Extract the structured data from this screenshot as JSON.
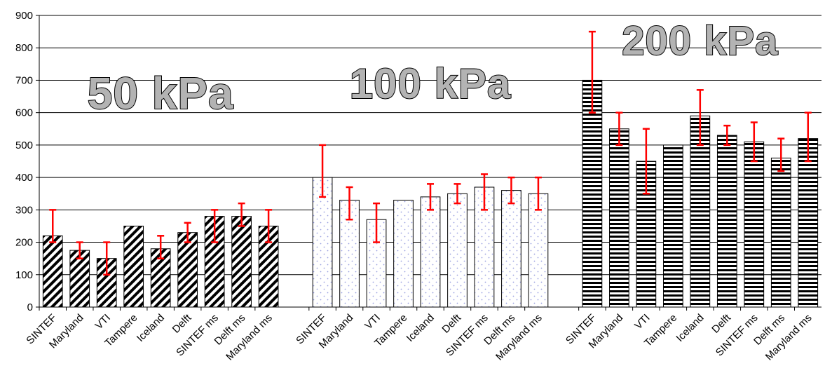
{
  "chart_data": {
    "type": "bar",
    "title": "",
    "xlabel": "",
    "ylabel": "",
    "ylim": [
      0,
      900
    ],
    "yticks": [
      0,
      100,
      200,
      300,
      400,
      500,
      600,
      700,
      800,
      900
    ],
    "grid": true,
    "legend": "none",
    "groups": [
      {
        "name": "50 kPa",
        "pattern": "diagonal-hatch",
        "categories": [
          "SINTEF",
          "Maryland",
          "VTI",
          "Tampere",
          "Iceland",
          "Delft",
          "SINTEF ms",
          "Delft ms",
          "Maryland ms"
        ],
        "values": [
          220,
          175,
          150,
          250,
          180,
          230,
          280,
          280,
          250
        ],
        "error_low": [
          200,
          150,
          100,
          null,
          150,
          200,
          200,
          250,
          200
        ],
        "error_high": [
          300,
          200,
          200,
          null,
          220,
          260,
          300,
          320,
          300
        ]
      },
      {
        "name": "100 kPa",
        "pattern": "dotted",
        "categories": [
          "SINTEF",
          "Maryland",
          "VTI",
          "Tampere",
          "Iceland",
          "Delft",
          "SINTEF ms",
          "Delft ms",
          "Maryland ms"
        ],
        "values": [
          400,
          330,
          270,
          330,
          340,
          350,
          370,
          360,
          350
        ],
        "error_low": [
          340,
          270,
          200,
          null,
          300,
          320,
          300,
          320,
          300
        ],
        "error_high": [
          500,
          370,
          320,
          null,
          380,
          380,
          410,
          400,
          400
        ]
      },
      {
        "name": "200 kPa",
        "pattern": "horizontal-stripes",
        "categories": [
          "SINTEF",
          "Maryland",
          "VTI",
          "Tampere",
          "Iceland",
          "Delft",
          "SINTEF ms",
          "Delft ms",
          "Maryland ms"
        ],
        "values": [
          700,
          550,
          450,
          500,
          590,
          530,
          510,
          460,
          520
        ],
        "error_low": [
          600,
          500,
          350,
          null,
          500,
          500,
          450,
          420,
          450
        ],
        "error_high": [
          850,
          600,
          550,
          null,
          670,
          560,
          570,
          520,
          600
        ]
      }
    ],
    "colors": {
      "error_bar": "#ff0000",
      "grid": "#000000",
      "title_fill": "#b3b3b3",
      "dot": "#9aa0e0"
    }
  }
}
